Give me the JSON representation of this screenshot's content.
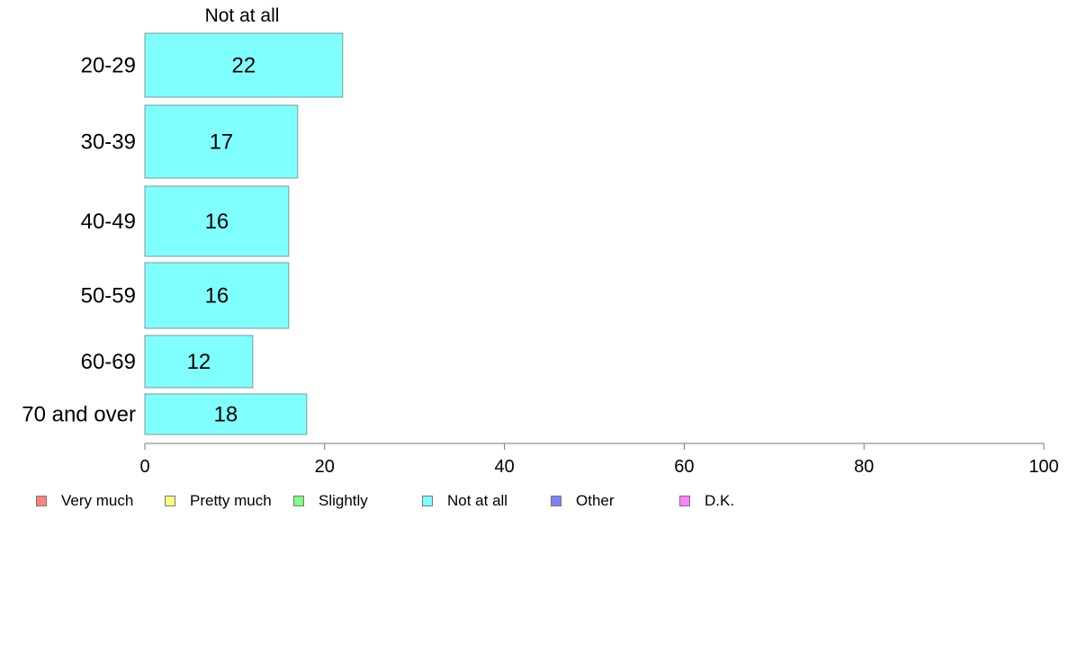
{
  "chart_data": {
    "type": "bar",
    "orientation": "horizontal",
    "title": "Not at all",
    "categories": [
      "20-29",
      "30-39",
      "40-49",
      "50-59",
      "60-69",
      "70 and over"
    ],
    "series": [
      {
        "name": "Not at all",
        "values": [
          22,
          17,
          16,
          16,
          12,
          18
        ]
      }
    ],
    "value_labels": [
      "22",
      "17",
      "16",
      "16",
      "12",
      "18"
    ],
    "xlim": [
      0,
      100
    ],
    "xticks": [
      0,
      20,
      40,
      60,
      80,
      100
    ],
    "xtick_labels": [
      "0",
      "20",
      "40",
      "60",
      "80",
      "100"
    ],
    "bar_color": "#80ffff",
    "grid": false,
    "legend_position": "bottom",
    "legend": [
      {
        "label": "Very much",
        "color": "#ff8080"
      },
      {
        "label": "Pretty much",
        "color": "#ffff80"
      },
      {
        "label": "Slightly",
        "color": "#80ff80"
      },
      {
        "label": "Not at all",
        "color": "#80ffff"
      },
      {
        "label": "Other",
        "color": "#8080ff"
      },
      {
        "label": "D.K.",
        "color": "#ff80ff"
      }
    ]
  }
}
